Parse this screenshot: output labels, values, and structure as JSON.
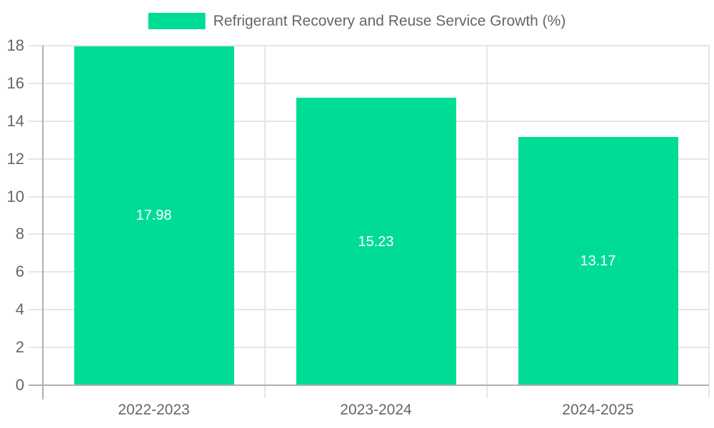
{
  "chart_data": {
    "type": "bar",
    "title": "Refrigerant Recovery and Reuse Service Growth (%)",
    "categories": [
      "2022-2023",
      "2023-2024",
      "2024-2025"
    ],
    "values": [
      17.98,
      15.23,
      13.17
    ],
    "value_labels": [
      "17.98",
      "15.23",
      "13.17"
    ],
    "series_name": "Refrigerant Recovery and Reuse Service Growth (%)",
    "xlabel": "",
    "ylabel": "",
    "ylim": [
      0,
      18
    ],
    "yticks": [
      0,
      2,
      4,
      6,
      8,
      10,
      12,
      14,
      16,
      18
    ],
    "grid": true,
    "legend_position": "top-center",
    "colors": {
      "bar": "#00DC96",
      "bar_label_text": "#FFFFFF",
      "axis_line": "#AFAFAF",
      "gridline": "#E6E6E6",
      "tick_text": "#666666",
      "legend_text": "#666666",
      "background": "#FFFFFF"
    }
  }
}
